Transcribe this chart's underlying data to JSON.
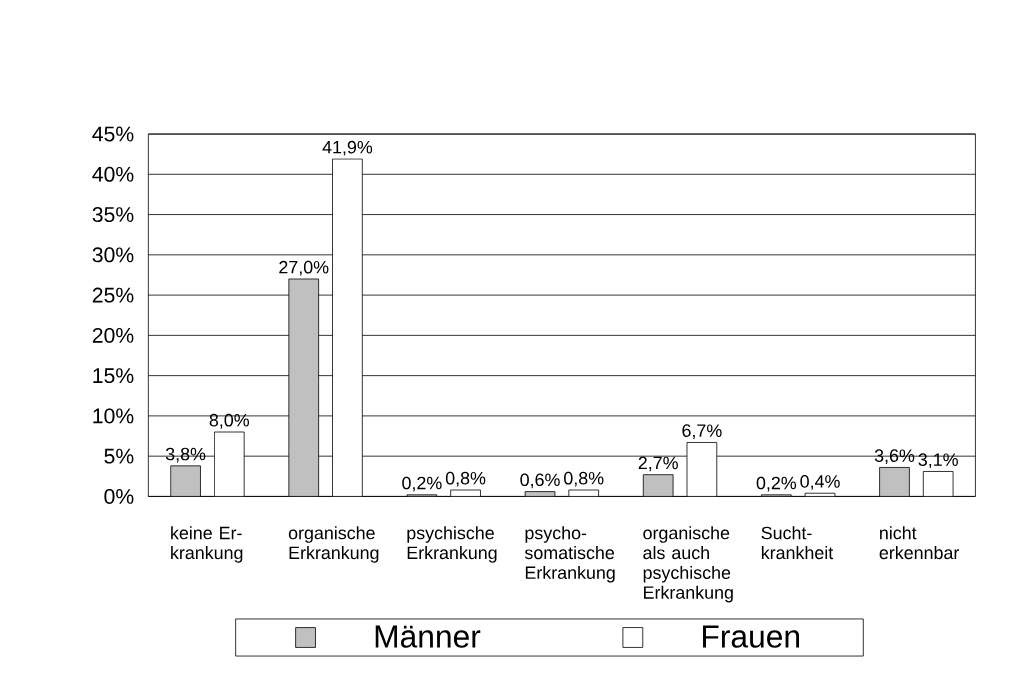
{
  "chart_data": {
    "type": "bar",
    "categories": [
      "keine Er- krankung",
      "organische Erkrankung",
      "psychische Erkrankung",
      "psycho- somatische Erkrankung",
      "organische als auch psychische Erkrankung",
      "Sucht- krankheit",
      "nicht erkennbar"
    ],
    "series": [
      {
        "name": "Männer",
        "color": "#c0c0c0",
        "values": [
          3.8,
          27.0,
          0.2,
          0.6,
          2.7,
          0.2,
          3.6
        ],
        "value_labels": [
          "3,8%",
          "27,0%",
          "0,2%",
          "0,6%",
          "2,7%",
          "0,2%",
          "3,6%"
        ]
      },
      {
        "name": "Frauen",
        "color": "#ffffff",
        "values": [
          8.0,
          41.9,
          0.8,
          0.8,
          6.7,
          0.4,
          3.1
        ],
        "value_labels": [
          "8,0%",
          "41,9%",
          "0,8%",
          "0,8%",
          "6,7%",
          "0,4%",
          "3,1%"
        ]
      }
    ],
    "ylim": [
      0,
      45
    ],
    "yticks": [
      {
        "value": 0,
        "label": "0%"
      },
      {
        "value": 5,
        "label": "5%"
      },
      {
        "value": 10,
        "label": "10%"
      },
      {
        "value": 15,
        "label": "15%"
      },
      {
        "value": 20,
        "label": "20%"
      },
      {
        "value": 25,
        "label": "25%"
      },
      {
        "value": 30,
        "label": "30%"
      },
      {
        "value": 35,
        "label": "35%"
      },
      {
        "value": 40,
        "label": "40%"
      },
      {
        "value": 45,
        "label": "45%"
      }
    ],
    "grid": "y",
    "legend": "bottom"
  }
}
